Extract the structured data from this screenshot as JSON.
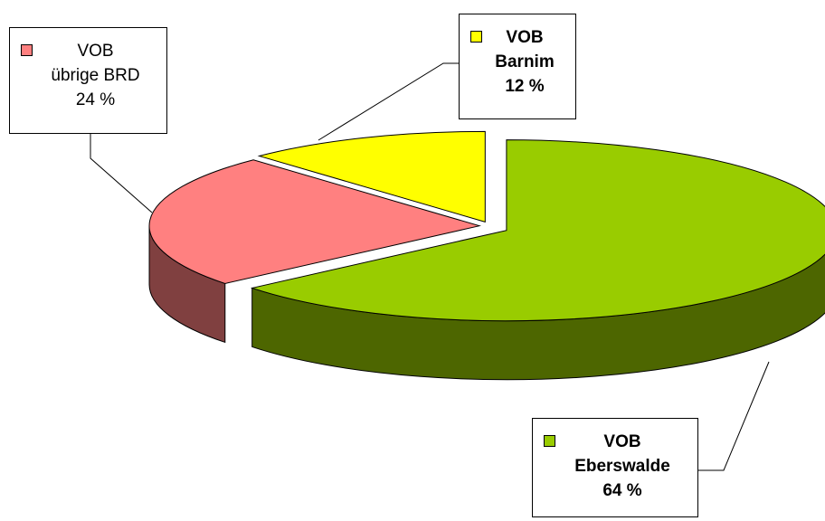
{
  "chart_data": {
    "type": "pie3d",
    "categories": [
      "VOB\nEberswalde",
      "VOB\nübrige BRD",
      "VOB\nBarnim"
    ],
    "values": [
      64,
      24,
      12
    ],
    "value_labels": [
      "64 %",
      "24 %",
      "12 %"
    ],
    "colors": [
      "#99cc00",
      "#ff8080",
      "#ffff00"
    ]
  }
}
